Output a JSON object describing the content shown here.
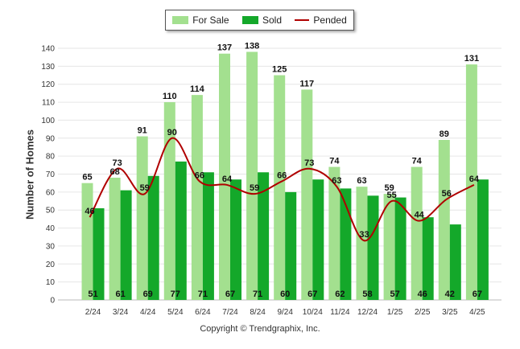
{
  "chart_data": {
    "type": "bar",
    "ylabel": "Number of Homes",
    "xlabel": "",
    "ylim": [
      0,
      140
    ],
    "yticks": [
      0,
      10,
      20,
      30,
      40,
      50,
      60,
      70,
      80,
      90,
      100,
      110,
      120,
      130,
      140
    ],
    "grid": true,
    "legend_position": "top-center",
    "categories": [
      "2/24",
      "3/24",
      "4/24",
      "5/24",
      "6/24",
      "7/24",
      "8/24",
      "9/24",
      "10/24",
      "11/24",
      "12/24",
      "1/25",
      "2/25",
      "3/25",
      "4/25"
    ],
    "series": [
      {
        "name": "For Sale",
        "kind": "bar",
        "color": "#a3e08f",
        "values": [
          65,
          68,
          91,
          110,
          114,
          137,
          138,
          125,
          117,
          74,
          63,
          59,
          74,
          89,
          131
        ]
      },
      {
        "name": "Sold",
        "kind": "bar",
        "color": "#14a82a",
        "values": [
          51,
          61,
          69,
          77,
          71,
          67,
          71,
          60,
          67,
          62,
          58,
          57,
          46,
          42,
          67
        ]
      },
      {
        "name": "Pended",
        "kind": "line",
        "color": "#b00000",
        "values": [
          46,
          73,
          59,
          90,
          66,
          64,
          59,
          66,
          73,
          63,
          33,
          55,
          44,
          56,
          64
        ]
      }
    ],
    "copyright": "Copyright © Trendgraphix, Inc."
  }
}
